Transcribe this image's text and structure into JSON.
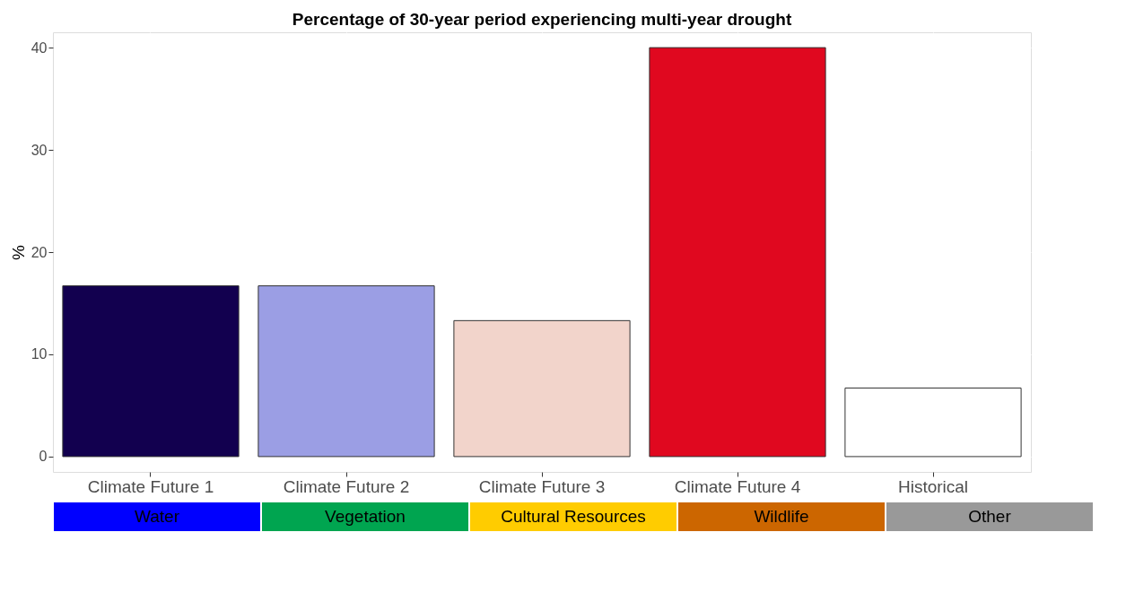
{
  "chart_data": {
    "type": "bar",
    "title": "Percentage of 30-year period experiencing multi-year drought",
    "ylabel": "%",
    "categories": [
      "Climate Future 1",
      "Climate Future 2",
      "Climate Future 3",
      "Climate Future 4",
      "Historical"
    ],
    "values": [
      16.7,
      16.7,
      13.3,
      40,
      6.7
    ],
    "colors": [
      "#12004f",
      "#9b9ee4",
      "#f2d4cb",
      "#e0081f",
      "#ffffff"
    ],
    "ylim": [
      -1.5,
      41.5
    ],
    "yticks": [
      0,
      10,
      20,
      30,
      40
    ],
    "grid": true,
    "annotations": [
      "Water",
      "Vegetation",
      "Cultural Resources",
      "Wildlife",
      "Other"
    ]
  }
}
